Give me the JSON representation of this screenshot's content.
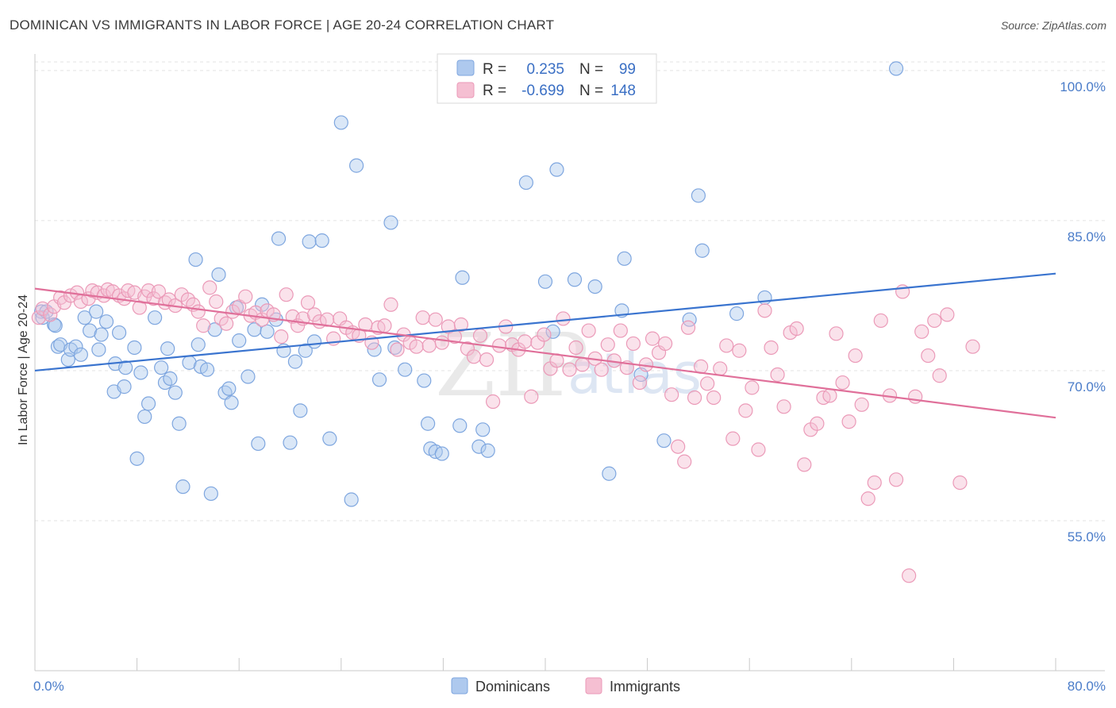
{
  "title": "DOMINICAN VS IMMIGRANTS IN LABOR FORCE | AGE 20-24 CORRELATION CHART",
  "source": "Source: ZipAtlas.com",
  "legend": {
    "r_label": "R =",
    "n_label": "N =",
    "series": [
      {
        "name": "Dominicans",
        "r": "0.235",
        "n": "99"
      },
      {
        "name": "Immigrants",
        "r": "-0.699",
        "n": "148"
      }
    ]
  },
  "colors": {
    "blue_fill": "#aec9ee",
    "blue_stroke": "#7ea6df",
    "blue_line": "#3a74cf",
    "pink_fill": "#f5bfd2",
    "pink_stroke": "#eb9ab8",
    "pink_line": "#e0709a",
    "grid": "#e3e3e3",
    "tick_text": "#4a7cc9"
  },
  "chart_data": {
    "type": "scatter",
    "title": "DOMINICAN VS IMMIGRANTS IN LABOR FORCE | AGE 20-24 CORRELATION CHART",
    "xlabel": "",
    "ylabel": "In Labor Force | Age 20-24",
    "xlim": [
      0,
      80
    ],
    "ylim": [
      40,
      101.5
    ],
    "x_tick_labels": [
      "0.0%",
      "80.0%"
    ],
    "y_ticks": [
      55,
      70,
      85,
      100
    ],
    "y_tick_labels": [
      "55.0%",
      "70.0%",
      "85.0%",
      "100.0%"
    ],
    "grid": true,
    "legend_position": "top-center",
    "series": [
      {
        "name": "Dominicans",
        "color": "#7ea6df",
        "trend": {
          "x": [
            0,
            80
          ],
          "y": [
            70.0,
            79.7
          ]
        },
        "points": [
          [
            0.5,
            75.9
          ],
          [
            0.6,
            75.3
          ],
          [
            0.9,
            75.9
          ],
          [
            1.5,
            74.6
          ],
          [
            1.6,
            74.5
          ],
          [
            1.8,
            72.4
          ],
          [
            2.0,
            72.6
          ],
          [
            2.6,
            71.1
          ],
          [
            2.8,
            72.1
          ],
          [
            3.2,
            72.4
          ],
          [
            3.6,
            71.6
          ],
          [
            3.9,
            75.3
          ],
          [
            4.3,
            74.0
          ],
          [
            4.8,
            75.9
          ],
          [
            5.0,
            72.1
          ],
          [
            5.2,
            73.6
          ],
          [
            5.6,
            74.9
          ],
          [
            6.2,
            67.9
          ],
          [
            6.3,
            70.7
          ],
          [
            6.6,
            73.8
          ],
          [
            7.0,
            68.4
          ],
          [
            7.1,
            70.3
          ],
          [
            7.8,
            72.3
          ],
          [
            8.0,
            61.2
          ],
          [
            8.3,
            69.8
          ],
          [
            8.6,
            65.4
          ],
          [
            8.9,
            66.7
          ],
          [
            9.4,
            75.3
          ],
          [
            9.9,
            70.3
          ],
          [
            10.2,
            68.8
          ],
          [
            10.4,
            72.2
          ],
          [
            10.6,
            69.2
          ],
          [
            11.0,
            67.8
          ],
          [
            11.3,
            64.7
          ],
          [
            11.6,
            58.4
          ],
          [
            12.1,
            70.8
          ],
          [
            12.6,
            81.1
          ],
          [
            12.8,
            72.6
          ],
          [
            13.0,
            70.4
          ],
          [
            13.5,
            70.1
          ],
          [
            13.8,
            57.7
          ],
          [
            14.1,
            74.1
          ],
          [
            14.4,
            79.6
          ],
          [
            14.9,
            67.8
          ],
          [
            15.2,
            68.2
          ],
          [
            15.4,
            66.8
          ],
          [
            15.8,
            76.3
          ],
          [
            16.0,
            73.0
          ],
          [
            16.7,
            69.4
          ],
          [
            17.2,
            74.1
          ],
          [
            17.5,
            62.7
          ],
          [
            17.8,
            76.6
          ],
          [
            18.2,
            73.9
          ],
          [
            18.9,
            75.1
          ],
          [
            19.1,
            83.2
          ],
          [
            19.5,
            72.0
          ],
          [
            20.0,
            62.8
          ],
          [
            20.4,
            70.9
          ],
          [
            20.8,
            66.0
          ],
          [
            21.2,
            72.0
          ],
          [
            21.5,
            82.9
          ],
          [
            21.9,
            72.9
          ],
          [
            22.5,
            83.0
          ],
          [
            23.1,
            63.2
          ],
          [
            24.0,
            94.8
          ],
          [
            24.8,
            57.1
          ],
          [
            25.2,
            90.5
          ],
          [
            26.6,
            72.1
          ],
          [
            27.0,
            69.1
          ],
          [
            27.9,
            84.8
          ],
          [
            28.2,
            72.3
          ],
          [
            29.0,
            70.1
          ],
          [
            30.5,
            69.0
          ],
          [
            30.8,
            64.7
          ],
          [
            31.0,
            62.2
          ],
          [
            31.4,
            61.9
          ],
          [
            31.9,
            61.7
          ],
          [
            33.3,
            64.5
          ],
          [
            33.5,
            79.3
          ],
          [
            34.8,
            62.4
          ],
          [
            35.1,
            64.1
          ],
          [
            35.5,
            62.0
          ],
          [
            38.5,
            88.8
          ],
          [
            40.0,
            78.9
          ],
          [
            40.6,
            73.9
          ],
          [
            40.9,
            90.1
          ],
          [
            42.3,
            79.1
          ],
          [
            43.9,
            78.4
          ],
          [
            45.0,
            59.7
          ],
          [
            46.0,
            76.0
          ],
          [
            46.2,
            81.2
          ],
          [
            47.5,
            69.6
          ],
          [
            49.3,
            63.0
          ],
          [
            51.3,
            75.1
          ],
          [
            52.0,
            87.5
          ],
          [
            52.3,
            82.0
          ],
          [
            57.2,
            77.3
          ],
          [
            67.5,
            100.2
          ],
          [
            55.0,
            75.7
          ]
        ]
      },
      {
        "name": "Immigrants",
        "color": "#eb9ab8",
        "trend": {
          "x": [
            0,
            80
          ],
          "y": [
            78.2,
            65.3
          ]
        },
        "points": [
          [
            0.3,
            75.3
          ],
          [
            0.6,
            76.2
          ],
          [
            1.2,
            75.6
          ],
          [
            1.5,
            76.4
          ],
          [
            2.0,
            77.3
          ],
          [
            2.3,
            76.8
          ],
          [
            2.8,
            77.5
          ],
          [
            3.3,
            77.8
          ],
          [
            3.6,
            76.9
          ],
          [
            4.2,
            77.2
          ],
          [
            4.5,
            78.0
          ],
          [
            4.9,
            77.8
          ],
          [
            5.4,
            77.5
          ],
          [
            5.7,
            78.1
          ],
          [
            6.1,
            77.9
          ],
          [
            6.6,
            77.5
          ],
          [
            7.0,
            77.2
          ],
          [
            7.3,
            78.0
          ],
          [
            7.8,
            77.8
          ],
          [
            8.2,
            76.3
          ],
          [
            8.6,
            77.4
          ],
          [
            8.9,
            78.0
          ],
          [
            9.3,
            77.2
          ],
          [
            9.7,
            77.9
          ],
          [
            10.2,
            76.8
          ],
          [
            10.5,
            77.1
          ],
          [
            11.0,
            76.5
          ],
          [
            11.5,
            77.6
          ],
          [
            12.0,
            77.1
          ],
          [
            12.4,
            76.6
          ],
          [
            12.8,
            75.9
          ],
          [
            13.2,
            74.5
          ],
          [
            13.7,
            78.3
          ],
          [
            14.2,
            76.9
          ],
          [
            14.6,
            75.2
          ],
          [
            15.0,
            74.7
          ],
          [
            15.5,
            75.9
          ],
          [
            16.0,
            76.4
          ],
          [
            16.5,
            77.4
          ],
          [
            16.9,
            75.5
          ],
          [
            17.3,
            75.8
          ],
          [
            17.8,
            75.1
          ],
          [
            18.2,
            76.0
          ],
          [
            18.7,
            75.6
          ],
          [
            19.3,
            73.4
          ],
          [
            19.7,
            77.6
          ],
          [
            20.2,
            75.4
          ],
          [
            20.6,
            74.5
          ],
          [
            21.0,
            75.2
          ],
          [
            21.4,
            76.8
          ],
          [
            21.9,
            75.6
          ],
          [
            22.3,
            74.9
          ],
          [
            22.9,
            75.1
          ],
          [
            23.4,
            73.2
          ],
          [
            23.9,
            75.2
          ],
          [
            24.4,
            74.3
          ],
          [
            24.9,
            73.8
          ],
          [
            25.4,
            73.5
          ],
          [
            25.9,
            74.6
          ],
          [
            26.4,
            72.8
          ],
          [
            26.9,
            74.3
          ],
          [
            27.4,
            74.5
          ],
          [
            27.9,
            76.6
          ],
          [
            28.4,
            72.1
          ],
          [
            28.9,
            73.6
          ],
          [
            29.4,
            72.8
          ],
          [
            29.9,
            72.4
          ],
          [
            30.4,
            75.3
          ],
          [
            30.9,
            72.5
          ],
          [
            31.4,
            75.1
          ],
          [
            31.9,
            72.8
          ],
          [
            32.4,
            74.4
          ],
          [
            32.9,
            73.4
          ],
          [
            33.4,
            74.6
          ],
          [
            33.9,
            72.2
          ],
          [
            34.4,
            71.4
          ],
          [
            34.9,
            73.5
          ],
          [
            35.4,
            71.1
          ],
          [
            35.9,
            66.9
          ],
          [
            36.4,
            72.5
          ],
          [
            36.9,
            74.4
          ],
          [
            37.4,
            72.6
          ],
          [
            37.9,
            72.1
          ],
          [
            38.4,
            72.9
          ],
          [
            38.9,
            67.4
          ],
          [
            39.4,
            72.8
          ],
          [
            39.9,
            73.6
          ],
          [
            40.4,
            70.2
          ],
          [
            40.9,
            71.0
          ],
          [
            41.4,
            75.2
          ],
          [
            41.9,
            70.1
          ],
          [
            42.4,
            72.3
          ],
          [
            42.9,
            70.6
          ],
          [
            43.4,
            74.0
          ],
          [
            43.9,
            71.2
          ],
          [
            44.4,
            70.1
          ],
          [
            44.9,
            72.6
          ],
          [
            45.4,
            71.0
          ],
          [
            45.9,
            74.0
          ],
          [
            46.4,
            70.3
          ],
          [
            46.9,
            72.7
          ],
          [
            47.4,
            68.8
          ],
          [
            47.9,
            70.6
          ],
          [
            48.4,
            73.2
          ],
          [
            48.9,
            71.8
          ],
          [
            49.4,
            72.7
          ],
          [
            49.9,
            67.6
          ],
          [
            50.4,
            62.4
          ],
          [
            50.9,
            60.9
          ],
          [
            51.2,
            74.3
          ],
          [
            51.7,
            67.3
          ],
          [
            52.2,
            70.4
          ],
          [
            52.7,
            68.7
          ],
          [
            53.2,
            67.3
          ],
          [
            53.7,
            70.2
          ],
          [
            54.2,
            72.5
          ],
          [
            54.7,
            63.2
          ],
          [
            55.2,
            72.0
          ],
          [
            55.7,
            66.0
          ],
          [
            56.2,
            68.3
          ],
          [
            56.7,
            62.1
          ],
          [
            57.2,
            76.0
          ],
          [
            57.7,
            72.3
          ],
          [
            58.2,
            69.6
          ],
          [
            58.7,
            66.4
          ],
          [
            59.2,
            73.8
          ],
          [
            59.7,
            74.2
          ],
          [
            60.3,
            60.6
          ],
          [
            60.8,
            64.1
          ],
          [
            61.3,
            64.7
          ],
          [
            61.8,
            67.3
          ],
          [
            62.3,
            67.5
          ],
          [
            62.8,
            73.7
          ],
          [
            63.3,
            68.8
          ],
          [
            63.8,
            64.9
          ],
          [
            64.3,
            71.5
          ],
          [
            64.8,
            66.6
          ],
          [
            65.3,
            57.2
          ],
          [
            65.8,
            58.8
          ],
          [
            66.3,
            75.0
          ],
          [
            67.0,
            67.5
          ],
          [
            67.5,
            59.1
          ],
          [
            68.0,
            77.9
          ],
          [
            68.5,
            49.5
          ],
          [
            69.0,
            67.4
          ],
          [
            69.5,
            73.9
          ],
          [
            70.0,
            71.5
          ],
          [
            70.5,
            75.0
          ],
          [
            70.9,
            69.5
          ],
          [
            71.5,
            75.6
          ],
          [
            72.5,
            58.8
          ],
          [
            73.5,
            72.4
          ]
        ]
      }
    ]
  }
}
